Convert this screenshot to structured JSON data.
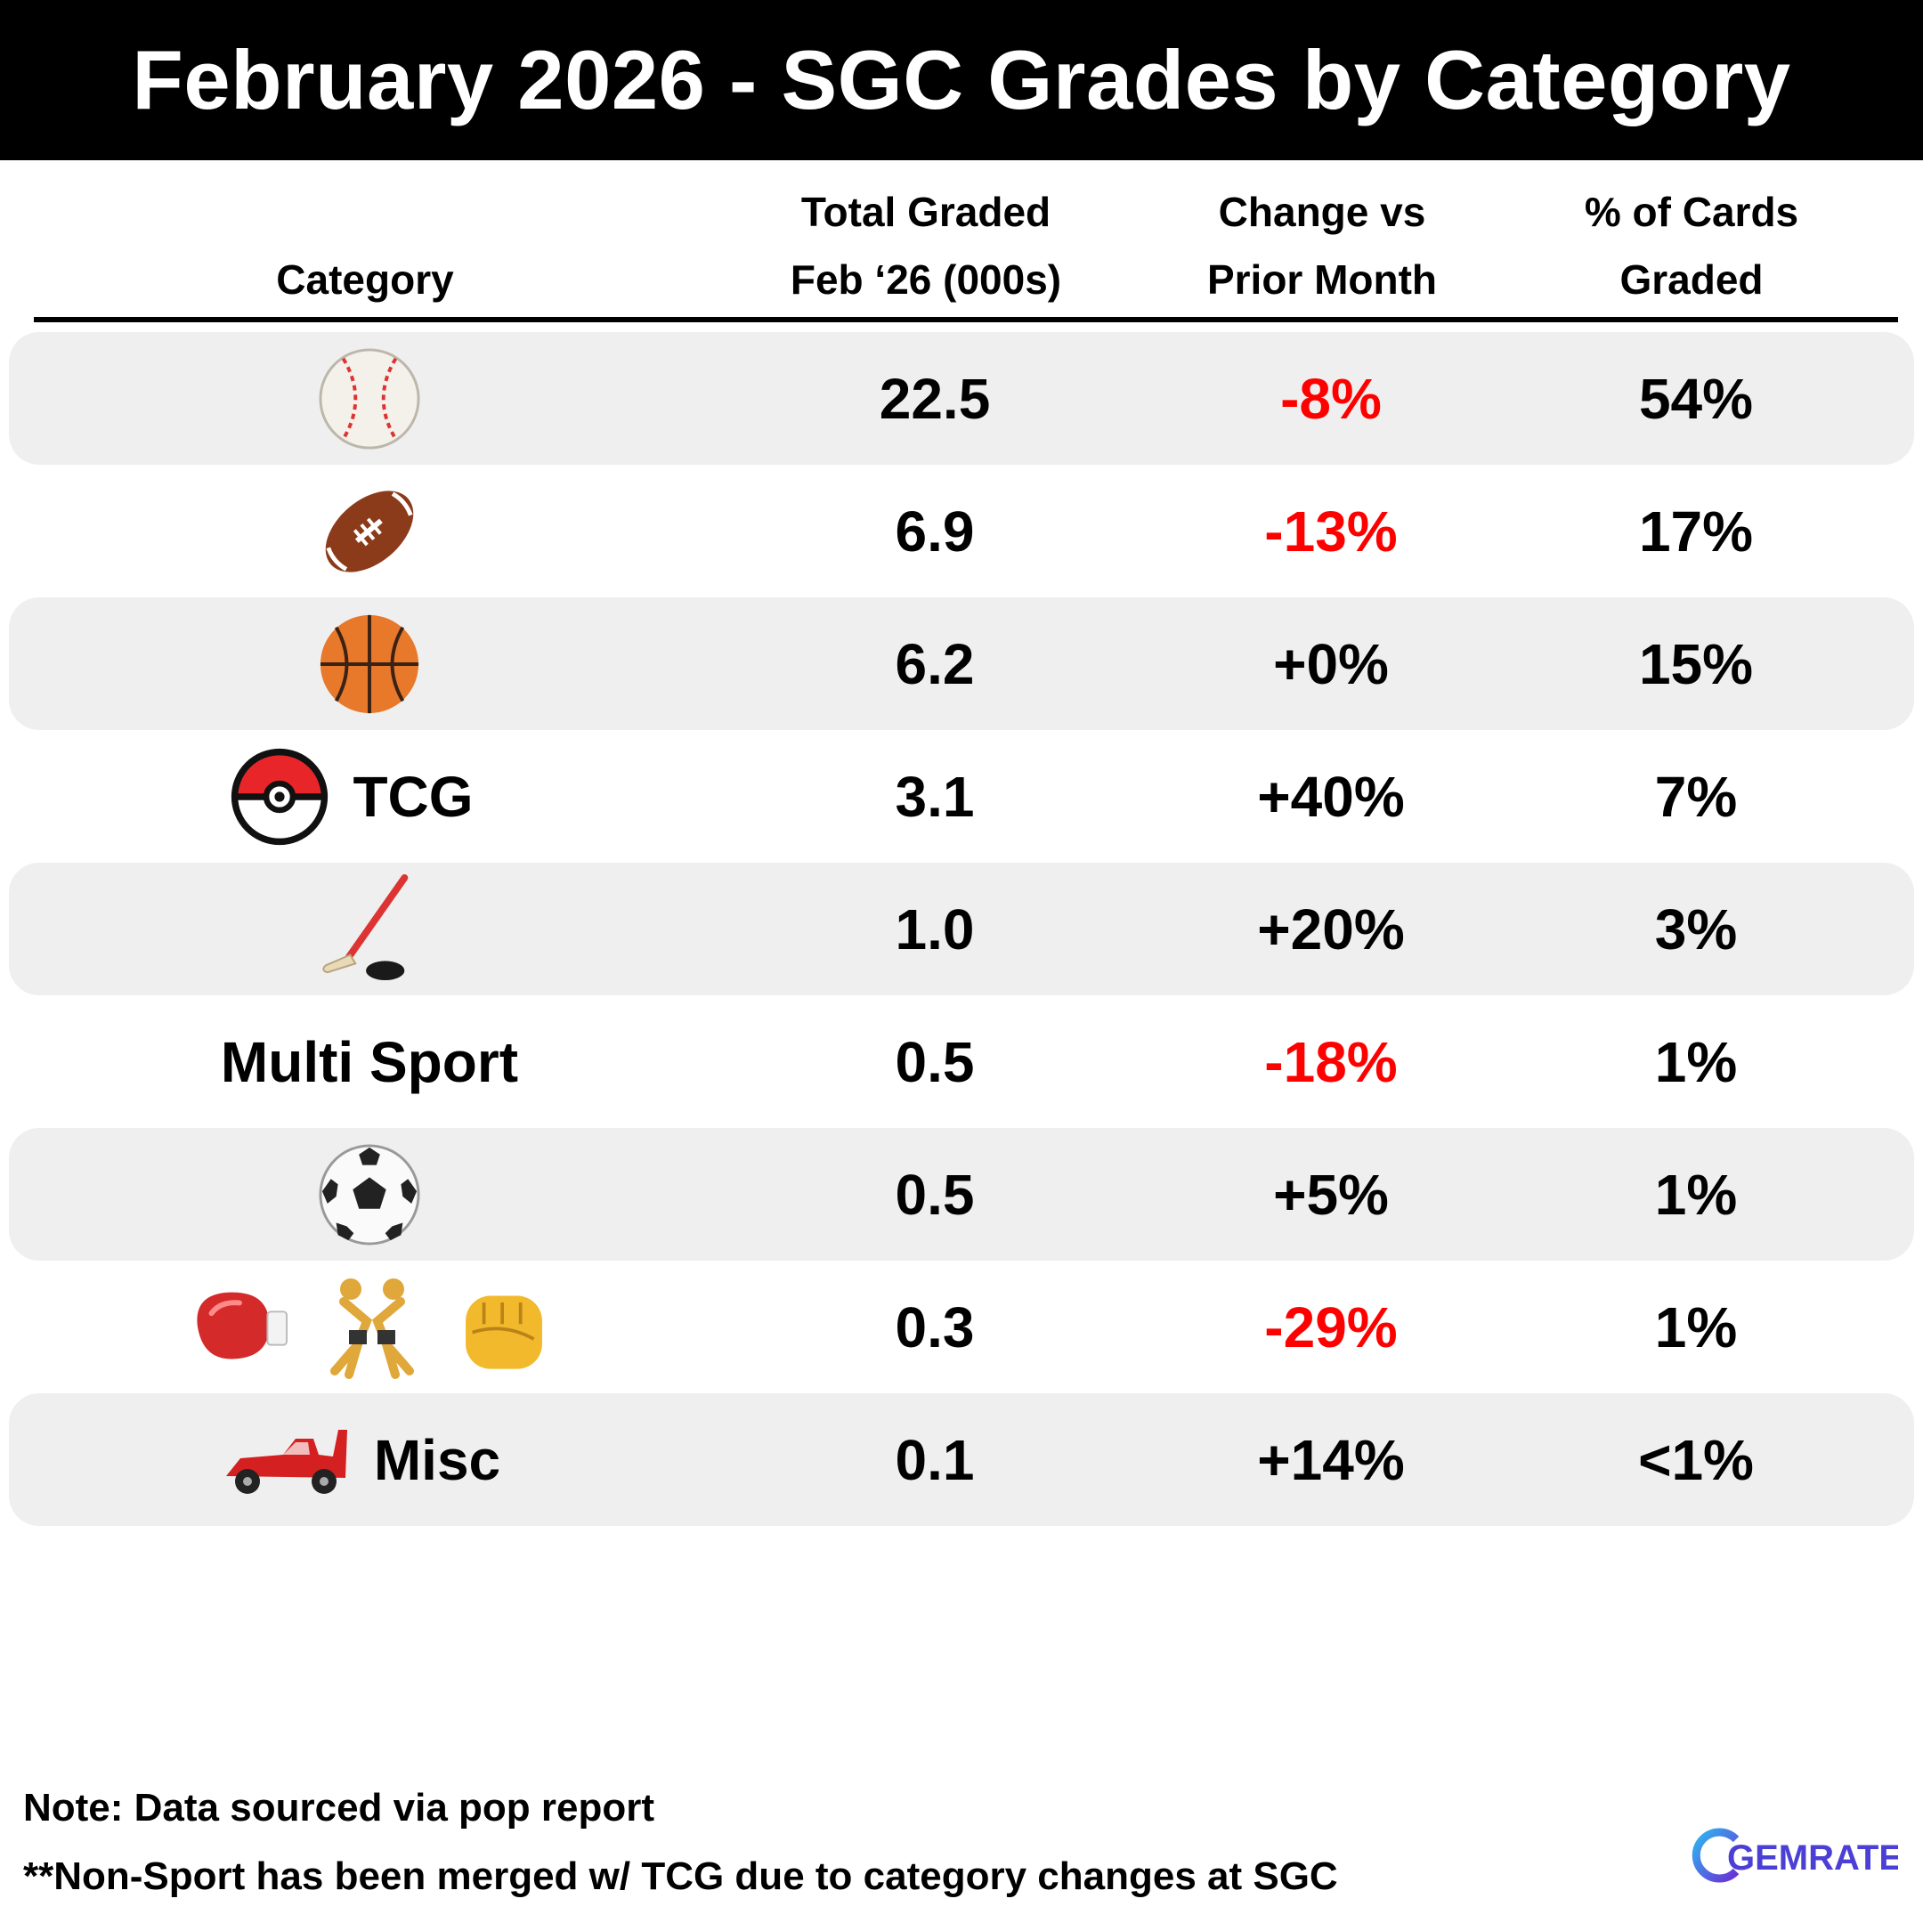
{
  "title": "February 2026 - SGC Grades by Category",
  "headers": {
    "category": "Category",
    "total_1": "Total Graded",
    "total_2": "Feb ‘26 (000s)",
    "change_1": "Change vs",
    "change_2": "Prior Month",
    "pct_1": "% of Cards",
    "pct_2": "Graded"
  },
  "rows": [
    {
      "icons": [
        "baseball-icon"
      ],
      "label": "",
      "total": "22.5",
      "change": "-8%",
      "pct": "54%"
    },
    {
      "icons": [
        "football-icon"
      ],
      "label": "",
      "total": "6.9",
      "change": "-13%",
      "pct": "17%"
    },
    {
      "icons": [
        "basketball-icon"
      ],
      "label": "",
      "total": "6.2",
      "change": "+0%",
      "pct": "15%"
    },
    {
      "icons": [
        "pokeball-icon"
      ],
      "label": "TCG",
      "total": "3.1",
      "change": "+40%",
      "pct": "7%"
    },
    {
      "icons": [
        "hockey-icon"
      ],
      "label": "",
      "total": "1.0",
      "change": "+20%",
      "pct": "3%"
    },
    {
      "icons": [],
      "label": "Multi Sport",
      "total": "0.5",
      "change": "-18%",
      "pct": "1%"
    },
    {
      "icons": [
        "soccer-ball-icon"
      ],
      "label": "",
      "total": "0.5",
      "change": "+5%",
      "pct": "1%"
    },
    {
      "icons": [
        "boxing-glove-icon",
        "wrestlers-icon",
        "fist-icon"
      ],
      "label": "",
      "total": "0.3",
      "change": "-29%",
      "pct": "1%"
    },
    {
      "icons": [
        "race-car-icon"
      ],
      "label": "Misc",
      "total": "0.1",
      "change": "+14%",
      "pct": "<1%"
    }
  ],
  "notes": {
    "line1": "Note: Data sourced via pop report",
    "line2": "**Non-Sport has been merged w/ TCG due to category changes at SGC"
  },
  "brand": "GEMRATE",
  "colors": {
    "negative": "#ff0000",
    "row_shade": "#efefef",
    "title_bg": "#000000",
    "brand_purple": "#4b3fd6"
  },
  "chart_data": {
    "type": "table",
    "title": "February 2026 - SGC Grades by Category",
    "columns": [
      "Category",
      "Total Graded Feb ‘26 (000s)",
      "Change vs Prior Month",
      "% of Cards Graded"
    ],
    "rows": [
      [
        "Baseball (icon)",
        22.5,
        -8,
        54
      ],
      [
        "Football (icon)",
        6.9,
        -13,
        17
      ],
      [
        "Basketball (icon)",
        6.2,
        0,
        15
      ],
      [
        "TCG",
        3.1,
        40,
        7
      ],
      [
        "Hockey (icon)",
        1.0,
        20,
        3
      ],
      [
        "Multi Sport",
        0.5,
        -18,
        1
      ],
      [
        "Soccer (icon)",
        0.5,
        5,
        1
      ],
      [
        "Boxing / Wrestling / MMA (icons)",
        0.3,
        -29,
        1
      ],
      [
        "Misc",
        0.1,
        14,
        "<1"
      ]
    ]
  }
}
